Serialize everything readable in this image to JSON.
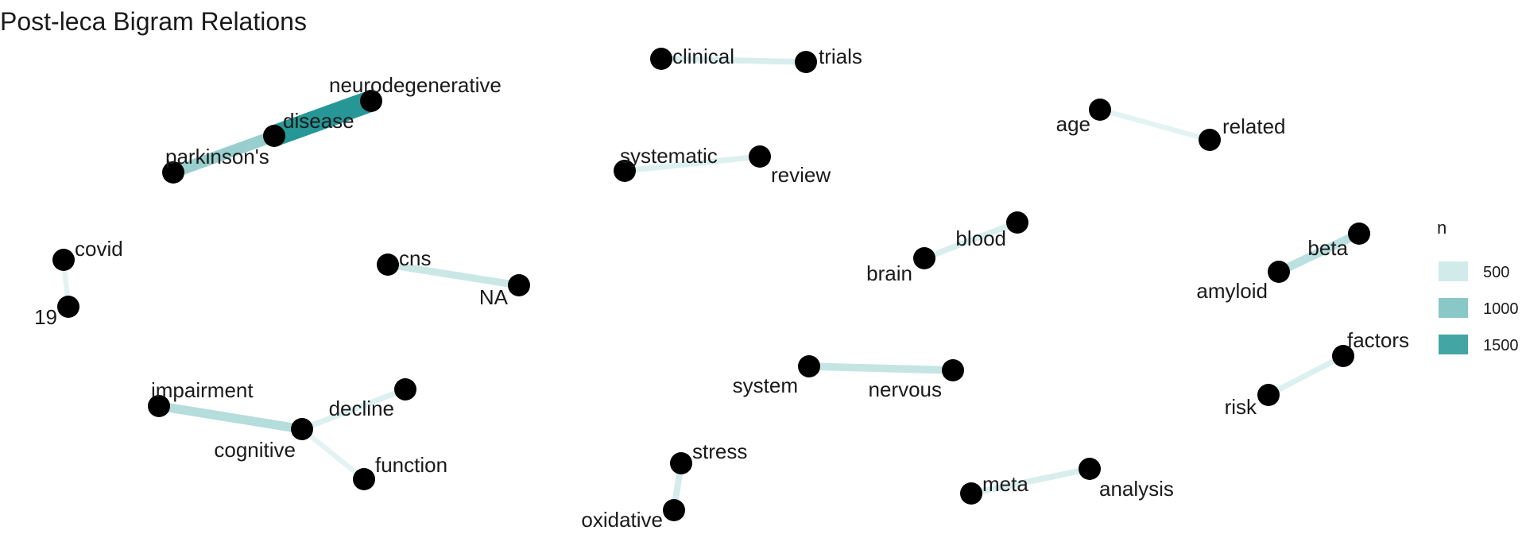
{
  "chart_data": {
    "type": "network",
    "title": "Post-leca Bigram Relations",
    "edges": [
      {
        "from": "neurodegenerative",
        "to": "disease",
        "n": 1700
      },
      {
        "from": "parkinson's",
        "to": "disease",
        "n": 900
      },
      {
        "from": "clinical",
        "to": "trials",
        "n": 450
      },
      {
        "from": "age",
        "to": "related",
        "n": 380
      },
      {
        "from": "systematic",
        "to": "review",
        "n": 420
      },
      {
        "from": "covid",
        "to": "19",
        "n": 380
      },
      {
        "from": "cns",
        "to": "NA",
        "n": 550
      },
      {
        "from": "brain",
        "to": "blood",
        "n": 450
      },
      {
        "from": "amyloid",
        "to": "beta",
        "n": 650
      },
      {
        "from": "risk",
        "to": "factors",
        "n": 420
      },
      {
        "from": "cognitive",
        "to": "impairment",
        "n": 700
      },
      {
        "from": "cognitive",
        "to": "decline",
        "n": 420
      },
      {
        "from": "cognitive",
        "to": "function",
        "n": 380
      },
      {
        "from": "nervous",
        "to": "system",
        "n": 580
      },
      {
        "from": "oxidative",
        "to": "stress",
        "n": 480
      },
      {
        "from": "meta",
        "to": "analysis",
        "n": 450
      }
    ],
    "legend": {
      "title": "n",
      "placement": "right",
      "entries": [
        {
          "label": "500",
          "value": 500
        },
        {
          "label": "1000",
          "value": 1000
        },
        {
          "label": "1500",
          "value": 1500
        }
      ]
    },
    "colors": {
      "low": "#e6f5f4",
      "high": "#1f9493",
      "node": "#000000"
    },
    "scale": {
      "min": 350,
      "max": 1750
    }
  }
}
